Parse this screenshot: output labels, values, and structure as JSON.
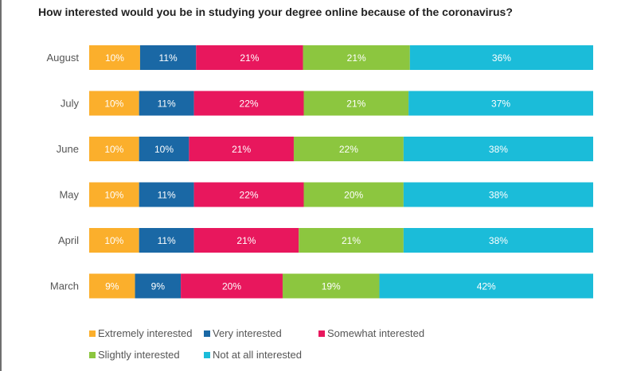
{
  "chart_data": {
    "type": "bar",
    "orientation": "horizontal",
    "stacked": true,
    "title": "How interested would you be in studying your degree online because of the coronavirus?",
    "categories": [
      "August",
      "July",
      "June",
      "May",
      "April",
      "March"
    ],
    "series": [
      {
        "name": "Extremely interested",
        "color": "#fbaf2c",
        "values": [
          10,
          10,
          10,
          10,
          10,
          9
        ],
        "labels": [
          "10%",
          "10%",
          "10%",
          "10%",
          "10%",
          "9%"
        ]
      },
      {
        "name": "Very interested",
        "color": "#1a68a5",
        "values": [
          11,
          11,
          10,
          11,
          11,
          9
        ],
        "labels": [
          "11%",
          "11%",
          "10%",
          "11%",
          "11%",
          "9%"
        ]
      },
      {
        "name": "Somewhat interested",
        "color": "#e8175d",
        "values": [
          21,
          22,
          21,
          22,
          21,
          20
        ],
        "labels": [
          "21%",
          "22%",
          "21%",
          "22%",
          "21%",
          "20%"
        ]
      },
      {
        "name": "Slightly interested",
        "color": "#8cc63f",
        "values": [
          21,
          21,
          22,
          20,
          21,
          19
        ],
        "labels": [
          "21%",
          "21%",
          "22%",
          "20%",
          "21%",
          "19%"
        ]
      },
      {
        "name": "Not at all interested",
        "color": "#1bbcd9",
        "values": [
          36,
          37,
          38,
          38,
          38,
          42
        ],
        "labels": [
          "36%",
          "37%",
          "38%",
          "38%",
          "38%",
          "42%"
        ]
      }
    ],
    "legend_position": "bottom",
    "grid": false
  }
}
